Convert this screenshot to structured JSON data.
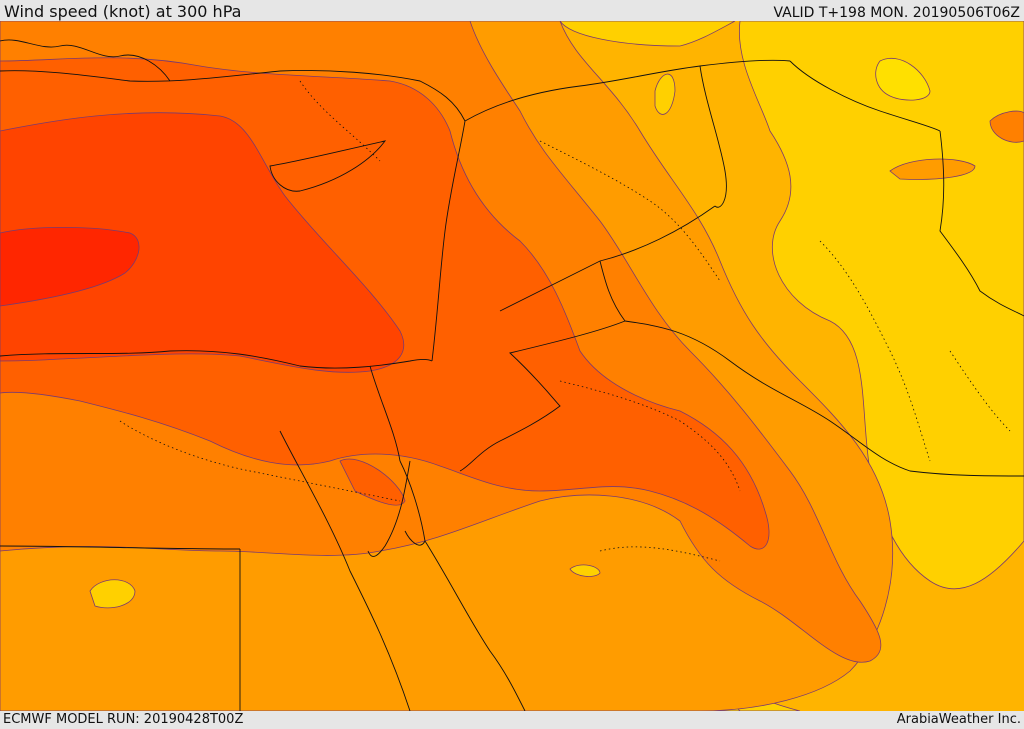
{
  "header": {
    "title": "Wind speed (knot) at 300 hPa",
    "valid": "VALID T+198 MON. 20190506T06Z"
  },
  "footer": {
    "model_run": "ECMWF MODEL RUN: 20190428T00Z",
    "credit": "ArabiaWeather Inc."
  },
  "map": {
    "variable": "wind speed",
    "level": "300 hPa",
    "palette": {
      "band1": "#ffe000",
      "band2": "#ffd000",
      "band3": "#ffb400",
      "band4": "#ff9c00",
      "band5": "#ff8000",
      "band6": "#ff6000",
      "band7": "#ff4400",
      "band8": "#ff2600"
    },
    "contour_color": "#7a3a70",
    "border_color": "#111111",
    "coast_color": "#111111"
  }
}
